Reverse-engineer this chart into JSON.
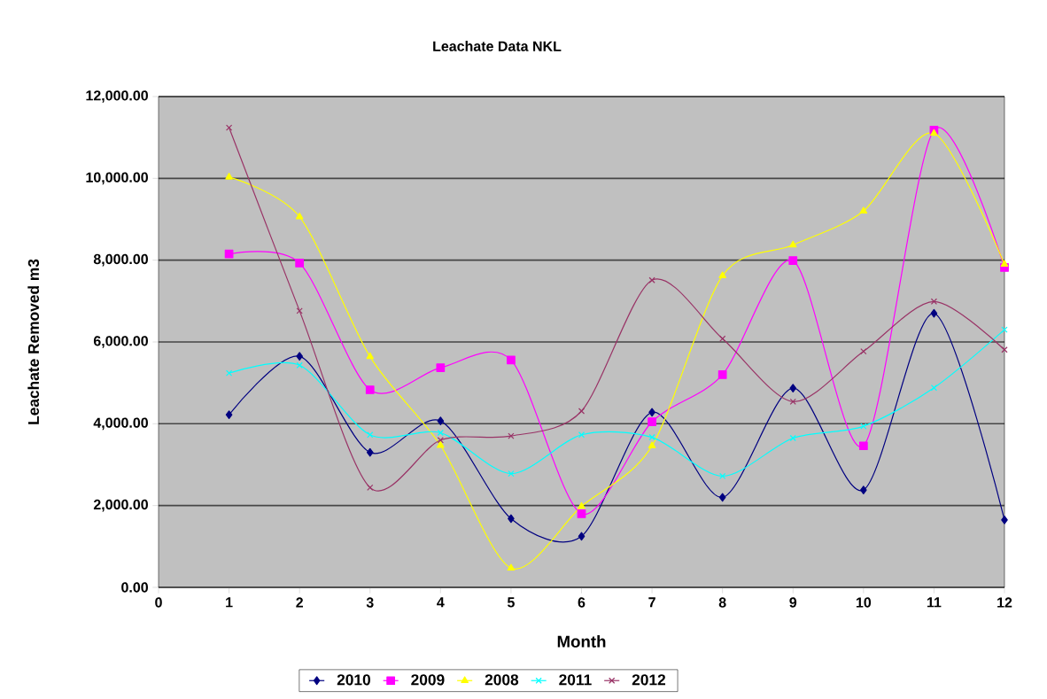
{
  "chart_data": {
    "type": "line",
    "title": "Leachate Data NKL",
    "xlabel": "Month",
    "ylabel": "Leachate Removed m3",
    "x": [
      1,
      2,
      3,
      4,
      5,
      6,
      7,
      8,
      9,
      10,
      11,
      12
    ],
    "xlim": [
      0,
      12
    ],
    "xticks": [
      0,
      1,
      2,
      3,
      4,
      5,
      6,
      7,
      8,
      9,
      10,
      11,
      12
    ],
    "ylim": [
      0,
      12000
    ],
    "yticks": [
      {
        "value": 0,
        "label": "0.00"
      },
      {
        "value": 2000,
        "label": "2,000.00"
      },
      {
        "value": 4000,
        "label": "4,000.00"
      },
      {
        "value": 6000,
        "label": "6,000.00"
      },
      {
        "value": 8000,
        "label": "8,000.00"
      },
      {
        "value": 10000,
        "label": "10,000.00"
      },
      {
        "value": 12000,
        "label": "12,000.00"
      }
    ],
    "grid": "y",
    "legend": "bottom",
    "series": [
      {
        "name": "2010",
        "color": "#000080",
        "marker": "diamond",
        "values": [
          4220,
          5650,
          3300,
          4070,
          1680,
          1250,
          4280,
          2200,
          4870,
          2380,
          6700,
          1650
        ]
      },
      {
        "name": "2009",
        "color": "#ff00ff",
        "marker": "square",
        "values": [
          8150,
          7930,
          4830,
          5370,
          5560,
          1800,
          4050,
          5200,
          7990,
          3460,
          11180,
          7820
        ]
      },
      {
        "name": "2008",
        "color": "#ffff00",
        "marker": "triangle",
        "values": [
          10030,
          9060,
          5640,
          3470,
          470,
          1980,
          3460,
          7620,
          8370,
          9200,
          11100,
          7900
        ]
      },
      {
        "name": "2011",
        "color": "#00ffff",
        "marker": "cross",
        "values": [
          5240,
          5430,
          3730,
          3780,
          2780,
          3730,
          3670,
          2720,
          3650,
          3940,
          4880,
          6300
        ]
      },
      {
        "name": "2012",
        "color": "#993366",
        "marker": "cross",
        "values": [
          11240,
          6760,
          2440,
          3600,
          3700,
          4310,
          7510,
          6080,
          4540,
          5770,
          6990,
          5810
        ]
      }
    ]
  }
}
